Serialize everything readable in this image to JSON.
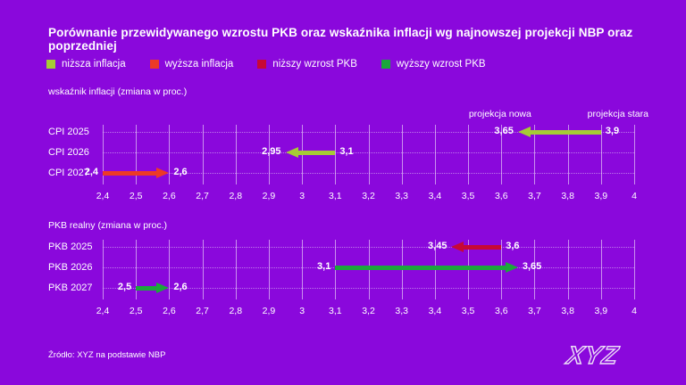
{
  "page": {
    "title": "Porównanie przewidywanego wzrostu PKB oraz wskaźnika inflacji wg najnowszej projekcji NBP oraz poprzedniej",
    "source": "Źródło: XYZ na podstawie NBP",
    "logo_text": "XYZ",
    "background_color": "#8A08DC",
    "text_color": "#FFFFFF"
  },
  "legend": [
    {
      "key": "lower-inflation",
      "label": "niższa inflacja",
      "color": "#A6CB35"
    },
    {
      "key": "higher-inflation",
      "label": "wyższa inflacja",
      "color": "#ED3A26"
    },
    {
      "key": "lower-gdp",
      "label": "niższy wzrost PKB",
      "color": "#C70836"
    },
    {
      "key": "higher-gdp",
      "label": "wyższy wzrost PKB",
      "color": "#1CA83B"
    }
  ],
  "chart_data": [
    {
      "type": "arrow-range",
      "title": "wskaźnik inflacji (zmiana w proc.)",
      "axis": {
        "min": 2.4,
        "max": 4.0,
        "step": 0.1,
        "tick_labels": [
          "2,4",
          "2,5",
          "2,6",
          "2,7",
          "2,8",
          "2,9",
          "3",
          "3,1",
          "3,2",
          "3,3",
          "3,4",
          "3,5",
          "3,6",
          "3,7",
          "3,8",
          "3,9",
          "4"
        ]
      },
      "annotations": [
        {
          "label": "projekcja nowa",
          "value": 3.65
        },
        {
          "label": "projekcja stara",
          "value": 3.9
        }
      ],
      "rows": [
        {
          "label": "CPI 2025",
          "from": 3.9,
          "to": 3.65,
          "from_label": "3,9",
          "to_label": "3,65",
          "series": "niższa inflacja",
          "color": "#A6CB35"
        },
        {
          "label": "CPI 2026",
          "from": 3.1,
          "to": 2.95,
          "from_label": "3,1",
          "to_label": "2,95",
          "series": "niższa inflacja",
          "color": "#A6CB35"
        },
        {
          "label": "CPI 2027",
          "from": 2.4,
          "to": 2.6,
          "from_label": "2,4",
          "to_label": "2,6",
          "series": "wyższa inflacja",
          "color": "#ED3A26"
        }
      ]
    },
    {
      "type": "arrow-range",
      "title": "PKB realny (zmiana w proc.)",
      "axis": {
        "min": 2.4,
        "max": 4.0,
        "step": 0.1,
        "tick_labels": [
          "2,4",
          "2,5",
          "2,6",
          "2,7",
          "2,8",
          "2,9",
          "3",
          "3,1",
          "3,2",
          "3,3",
          "3,4",
          "3,5",
          "3,6",
          "3,7",
          "3,8",
          "3,9",
          "4"
        ]
      },
      "annotations": [],
      "rows": [
        {
          "label": "PKB 2025",
          "from": 3.6,
          "to": 3.45,
          "from_label": "3,6",
          "to_label": "3,45",
          "series": "niższy wzrost PKB",
          "color": "#C70836"
        },
        {
          "label": "PKB 2026",
          "from": 3.1,
          "to": 3.65,
          "from_label": "3,1",
          "to_label": "3,65",
          "series": "wyższy wzrost PKB",
          "color": "#1CA83B"
        },
        {
          "label": "PKB 2027",
          "from": 2.5,
          "to": 2.6,
          "from_label": "2,5",
          "to_label": "2,6",
          "series": "wyższy wzrost PKB",
          "color": "#1CA83B"
        }
      ]
    }
  ]
}
